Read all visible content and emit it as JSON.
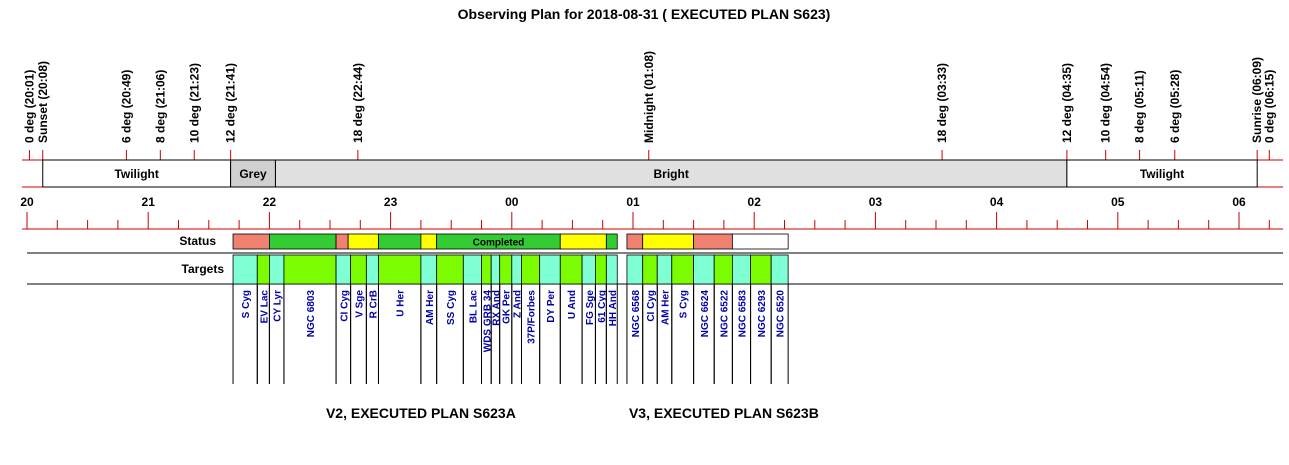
{
  "title": "Observing Plan for 2018-08-31 ( EXECUTED PLAN S623)",
  "events": [
    {
      "time": 20.02,
      "label": "0 deg (20:01)"
    },
    {
      "time": 20.13,
      "label": "Sunset (20:08)"
    },
    {
      "time": 20.82,
      "label": "6 deg (20:49)"
    },
    {
      "time": 21.1,
      "label": "8 deg (21:06)"
    },
    {
      "time": 21.38,
      "label": "10 deg (21:23)"
    },
    {
      "time": 21.68,
      "label": "12 deg (21:41)"
    },
    {
      "time": 22.73,
      "label": "18 deg (22:44)"
    },
    {
      "time": 25.13,
      "label": "Midnight (01:08)"
    },
    {
      "time": 27.55,
      "label": "18 deg (03:33)"
    },
    {
      "time": 28.58,
      "label": "12 deg (04:35)"
    },
    {
      "time": 28.9,
      "label": "10 deg (04:54)"
    },
    {
      "time": 29.18,
      "label": "8 deg (05:11)"
    },
    {
      "time": 29.47,
      "label": "6 deg (05:28)"
    },
    {
      "time": 30.15,
      "label": "Sunrise (06:09)"
    },
    {
      "time": 30.25,
      "label": "0 deg (06:15)"
    }
  ],
  "bands": [
    {
      "start": 20.13,
      "end": 21.68,
      "label": "Twilight",
      "color": "#ffffff"
    },
    {
      "start": 21.68,
      "end": 22.05,
      "label": "Grey",
      "color": "#d0d0d0"
    },
    {
      "start": 22.05,
      "end": 28.58,
      "label": "Bright",
      "color": "#e0e0e0"
    },
    {
      "start": 28.58,
      "end": 30.15,
      "label": "Twilight",
      "color": "#ffffff"
    }
  ],
  "hours": [
    "20",
    "21",
    "22",
    "23",
    "00",
    "01",
    "02",
    "03",
    "04",
    "05",
    "06"
  ],
  "row_labels": {
    "status": "Status",
    "targets": "Targets"
  },
  "status_segments": [
    {
      "start": 21.7,
      "end": 22.0,
      "color": "#f08070",
      "label": ""
    },
    {
      "start": 22.0,
      "end": 22.55,
      "color": "#33cc33",
      "label": ""
    },
    {
      "start": 22.55,
      "end": 22.65,
      "color": "#f08070",
      "label": ""
    },
    {
      "start": 22.65,
      "end": 22.9,
      "color": "#ffff00",
      "label": ""
    },
    {
      "start": 22.9,
      "end": 23.25,
      "color": "#33cc33",
      "label": ""
    },
    {
      "start": 23.25,
      "end": 23.38,
      "color": "#ffff00",
      "label": ""
    },
    {
      "start": 23.38,
      "end": 24.4,
      "color": "#33cc33",
      "label": "Completed"
    },
    {
      "start": 24.4,
      "end": 24.78,
      "color": "#ffff00",
      "label": ""
    },
    {
      "start": 24.78,
      "end": 24.87,
      "color": "#33cc33",
      "label": ""
    },
    {
      "start": 24.95,
      "end": 25.08,
      "color": "#f08070",
      "label": ""
    },
    {
      "start": 25.08,
      "end": 25.5,
      "color": "#ffff00",
      "label": ""
    },
    {
      "start": 25.5,
      "end": 25.82,
      "color": "#f08070",
      "label": ""
    },
    {
      "start": 25.82,
      "end": 26.28,
      "color": "#ffffff",
      "label": ""
    }
  ],
  "targets": [
    {
      "start": 21.7,
      "end": 21.9,
      "name": "S Cyg",
      "color": "#7fffd4"
    },
    {
      "start": 21.9,
      "end": 22.0,
      "name": "EV Lac",
      "color": "#7cfc00"
    },
    {
      "start": 22.0,
      "end": 22.12,
      "name": "CY Lyr",
      "color": "#7fffd4"
    },
    {
      "start": 22.12,
      "end": 22.55,
      "name": "NGC 6803",
      "color": "#7cfc00"
    },
    {
      "start": 22.55,
      "end": 22.67,
      "name": "CI Cyg",
      "color": "#7fffd4"
    },
    {
      "start": 22.67,
      "end": 22.8,
      "name": "V Sge",
      "color": "#7cfc00"
    },
    {
      "start": 22.8,
      "end": 22.9,
      "name": "R CrB",
      "color": "#7fffd4"
    },
    {
      "start": 22.9,
      "end": 23.25,
      "name": "U Her",
      "color": "#7cfc00"
    },
    {
      "start": 23.25,
      "end": 23.38,
      "name": "AM Her",
      "color": "#7fffd4"
    },
    {
      "start": 23.38,
      "end": 23.6,
      "name": "SS Cyg",
      "color": "#7cfc00"
    },
    {
      "start": 23.6,
      "end": 23.75,
      "name": "BL Lac",
      "color": "#7fffd4"
    },
    {
      "start": 23.75,
      "end": 23.83,
      "name": "WDS GRB 34",
      "color": "#7cfc00"
    },
    {
      "start": 23.83,
      "end": 23.9,
      "name": "RX And",
      "color": "#7fffd4"
    },
    {
      "start": 23.9,
      "end": 24.0,
      "name": "GK Per",
      "color": "#7cfc00"
    },
    {
      "start": 24.0,
      "end": 24.08,
      "name": "Z And",
      "color": "#7fffd4"
    },
    {
      "start": 24.08,
      "end": 24.23,
      "name": "37P/Forbes",
      "color": "#7cfc00"
    },
    {
      "start": 24.23,
      "end": 24.4,
      "name": "DY Per",
      "color": "#7fffd4"
    },
    {
      "start": 24.4,
      "end": 24.58,
      "name": "U And",
      "color": "#7cfc00"
    },
    {
      "start": 24.58,
      "end": 24.69,
      "name": "FG Sge",
      "color": "#7fffd4"
    },
    {
      "start": 24.69,
      "end": 24.78,
      "name": "61 Cyg",
      "color": "#7cfc00"
    },
    {
      "start": 24.78,
      "end": 24.87,
      "name": "HH And",
      "color": "#7fffd4"
    },
    {
      "start": 24.95,
      "end": 25.08,
      "name": "NGC 6568",
      "color": "#7fffd4"
    },
    {
      "start": 25.08,
      "end": 25.2,
      "name": "CI Cyg",
      "color": "#7cfc00"
    },
    {
      "start": 25.2,
      "end": 25.32,
      "name": "AM Her",
      "color": "#7fffd4"
    },
    {
      "start": 25.32,
      "end": 25.5,
      "name": "S Cyg",
      "color": "#7cfc00"
    },
    {
      "start": 25.5,
      "end": 25.67,
      "name": "NGC 6624",
      "color": "#7fffd4"
    },
    {
      "start": 25.67,
      "end": 25.82,
      "name": "NGC 6522",
      "color": "#7cfc00"
    },
    {
      "start": 25.82,
      "end": 25.97,
      "name": "NGC 6583",
      "color": "#7fffd4"
    },
    {
      "start": 25.97,
      "end": 26.14,
      "name": "NGC 6293",
      "color": "#7cfc00"
    },
    {
      "start": 26.14,
      "end": 26.28,
      "name": "NGC 6520",
      "color": "#7fffd4"
    }
  ],
  "plans": [
    {
      "label": "V2, EXECUTED PLAN S623A",
      "center": 23.25
    },
    {
      "label": "V3, EXECUTED PLAN S623B",
      "center": 25.75
    }
  ],
  "colors": {
    "axis_line": "#cc0000",
    "label_text": "#000000",
    "target_text": "#0000aa"
  }
}
